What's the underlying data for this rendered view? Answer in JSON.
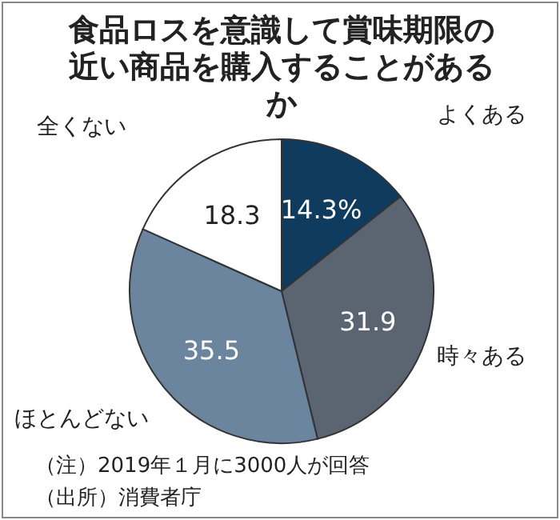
{
  "chart_data": {
    "type": "pie",
    "title": "食品ロスを意識して賞味期限の近い商品を購入することがあるか",
    "categories": [
      "よくある",
      "時々ある",
      "ほとんどない",
      "全くない"
    ],
    "values": [
      14.3,
      31.9,
      35.5,
      18.3
    ],
    "value_labels": [
      "14.3%",
      "31.9",
      "35.5",
      "18.3"
    ],
    "colors": [
      "#0e3b5e",
      "#5b6572",
      "#6b859e",
      "#ffffff"
    ],
    "annotations": [
      "（注）2019年１月に3000人が回答",
      "（出所）消費者庁"
    ]
  }
}
